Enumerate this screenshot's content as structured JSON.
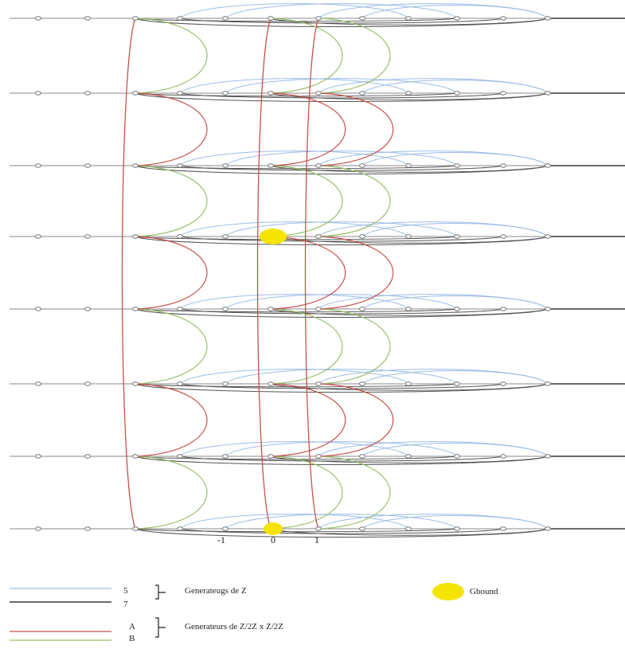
{
  "diagram": {
    "level_count": 8,
    "nodes_per_level": 12,
    "edge_types": {
      "generator_5": {
        "color": "#9dbde6"
      },
      "generator_7": {
        "color": "#555555"
      },
      "generator_A": {
        "color": "#c8504a"
      },
      "generator_B": {
        "color": "#9cc06a"
      }
    },
    "highlight_color": "#f5e400"
  },
  "axis_labels": {
    "minus_one": "-1",
    "zero": "0",
    "one": "1"
  },
  "legend": {
    "z_gen_5": "5",
    "z_gen_7": "7",
    "z_title": "Generateugs de Z",
    "ab_gen_a": "A",
    "ab_gen_b": "B",
    "ab_title": "Generateurs de Z/2Z x Z/2Z",
    "gbound_label": "Gbound"
  }
}
